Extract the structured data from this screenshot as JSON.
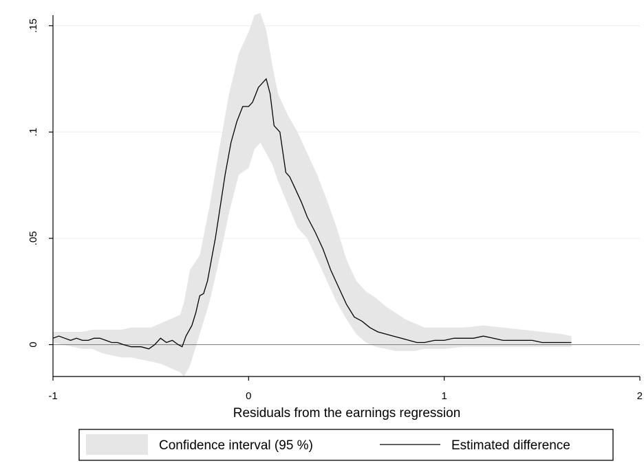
{
  "chart_data": {
    "type": "area",
    "title": "",
    "xlabel": "Residuals from the earnings regression",
    "ylabel": "",
    "xlim": [
      -1,
      2
    ],
    "ylim": [
      -0.015,
      0.155
    ],
    "x_ticks": [
      -1,
      0,
      1,
      2
    ],
    "x_tick_labels": [
      "-1",
      "0",
      "1",
      "2"
    ],
    "y_ticks": [
      0,
      0.05,
      0.1,
      0.15
    ],
    "y_tick_labels": [
      "0",
      ".05",
      ".1",
      ".15"
    ],
    "grid": "horizontal",
    "reference_line_y": 0,
    "legend_position": "bottom",
    "colors": {
      "band": "#e6e6e6",
      "line": "#000000",
      "grid": "#eeeeee",
      "zero_line": "#777777"
    },
    "series": [
      {
        "name": "Confidence interval (95 %)",
        "kind": "band",
        "x": [
          -1.0,
          -0.95,
          -0.9,
          -0.85,
          -0.8,
          -0.75,
          -0.7,
          -0.65,
          -0.6,
          -0.55,
          -0.5,
          -0.45,
          -0.4,
          -0.35,
          -0.33,
          -0.3,
          -0.25,
          -0.2,
          -0.15,
          -0.1,
          -0.05,
          0.0,
          0.03,
          0.06,
          0.09,
          0.12,
          0.15,
          0.2,
          0.25,
          0.3,
          0.35,
          0.4,
          0.45,
          0.5,
          0.55,
          0.6,
          0.65,
          0.7,
          0.75,
          0.8,
          0.85,
          0.9,
          0.95,
          1.0,
          1.1,
          1.2,
          1.3,
          1.4,
          1.5,
          1.6,
          1.65
        ],
        "lower": [
          0.001,
          0.0,
          -0.001,
          -0.002,
          -0.002,
          -0.004,
          -0.005,
          -0.006,
          -0.006,
          -0.007,
          -0.008,
          -0.009,
          -0.011,
          -0.013,
          -0.015,
          -0.01,
          0.005,
          0.02,
          0.04,
          0.062,
          0.08,
          0.083,
          0.092,
          0.095,
          0.09,
          0.085,
          0.077,
          0.066,
          0.055,
          0.05,
          0.04,
          0.03,
          0.02,
          0.012,
          0.005,
          0.001,
          -0.001,
          -0.002,
          -0.003,
          -0.003,
          -0.003,
          -0.002,
          -0.002,
          -0.002,
          -0.001,
          -0.001,
          -0.001,
          -0.001,
          -0.001,
          -0.001,
          -0.001
        ],
        "upper": [
          0.006,
          0.006,
          0.006,
          0.006,
          0.007,
          0.007,
          0.007,
          0.007,
          0.008,
          0.008,
          0.008,
          0.01,
          0.012,
          0.014,
          0.02,
          0.035,
          0.042,
          0.065,
          0.092,
          0.118,
          0.137,
          0.147,
          0.155,
          0.156,
          0.148,
          0.132,
          0.118,
          0.108,
          0.1,
          0.09,
          0.08,
          0.068,
          0.055,
          0.04,
          0.03,
          0.025,
          0.022,
          0.018,
          0.015,
          0.012,
          0.01,
          0.008,
          0.008,
          0.008,
          0.008,
          0.009,
          0.008,
          0.007,
          0.006,
          0.005,
          0.004
        ]
      },
      {
        "name": "Estimated difference",
        "kind": "line",
        "x": [
          -1.0,
          -0.97,
          -0.94,
          -0.91,
          -0.88,
          -0.85,
          -0.82,
          -0.79,
          -0.76,
          -0.73,
          -0.7,
          -0.67,
          -0.64,
          -0.6,
          -0.55,
          -0.51,
          -0.48,
          -0.45,
          -0.42,
          -0.39,
          -0.36,
          -0.34,
          -0.32,
          -0.29,
          -0.27,
          -0.25,
          -0.23,
          -0.21,
          -0.19,
          -0.17,
          -0.15,
          -0.12,
          -0.09,
          -0.06,
          -0.03,
          0.0,
          0.02,
          0.05,
          0.07,
          0.09,
          0.11,
          0.13,
          0.16,
          0.19,
          0.21,
          0.24,
          0.27,
          0.3,
          0.34,
          0.38,
          0.42,
          0.46,
          0.5,
          0.54,
          0.58,
          0.62,
          0.66,
          0.7,
          0.74,
          0.78,
          0.82,
          0.86,
          0.9,
          0.95,
          1.0,
          1.05,
          1.1,
          1.15,
          1.2,
          1.25,
          1.3,
          1.35,
          1.4,
          1.45,
          1.5,
          1.55,
          1.6,
          1.65
        ],
        "y": [
          0.003,
          0.004,
          0.003,
          0.002,
          0.003,
          0.002,
          0.002,
          0.003,
          0.003,
          0.002,
          0.001,
          0.001,
          0.0,
          -0.001,
          -0.001,
          -0.002,
          0.0,
          0.003,
          0.001,
          0.002,
          0.0,
          -0.001,
          0.004,
          0.009,
          0.015,
          0.023,
          0.024,
          0.03,
          0.04,
          0.05,
          0.062,
          0.08,
          0.095,
          0.105,
          0.112,
          0.112,
          0.114,
          0.121,
          0.123,
          0.125,
          0.118,
          0.103,
          0.1,
          0.081,
          0.079,
          0.073,
          0.067,
          0.06,
          0.053,
          0.045,
          0.035,
          0.027,
          0.019,
          0.013,
          0.011,
          0.008,
          0.006,
          0.005,
          0.004,
          0.003,
          0.002,
          0.001,
          0.001,
          0.002,
          0.002,
          0.003,
          0.003,
          0.003,
          0.004,
          0.003,
          0.002,
          0.002,
          0.002,
          0.002,
          0.001,
          0.001,
          0.001,
          0.001
        ]
      }
    ]
  }
}
